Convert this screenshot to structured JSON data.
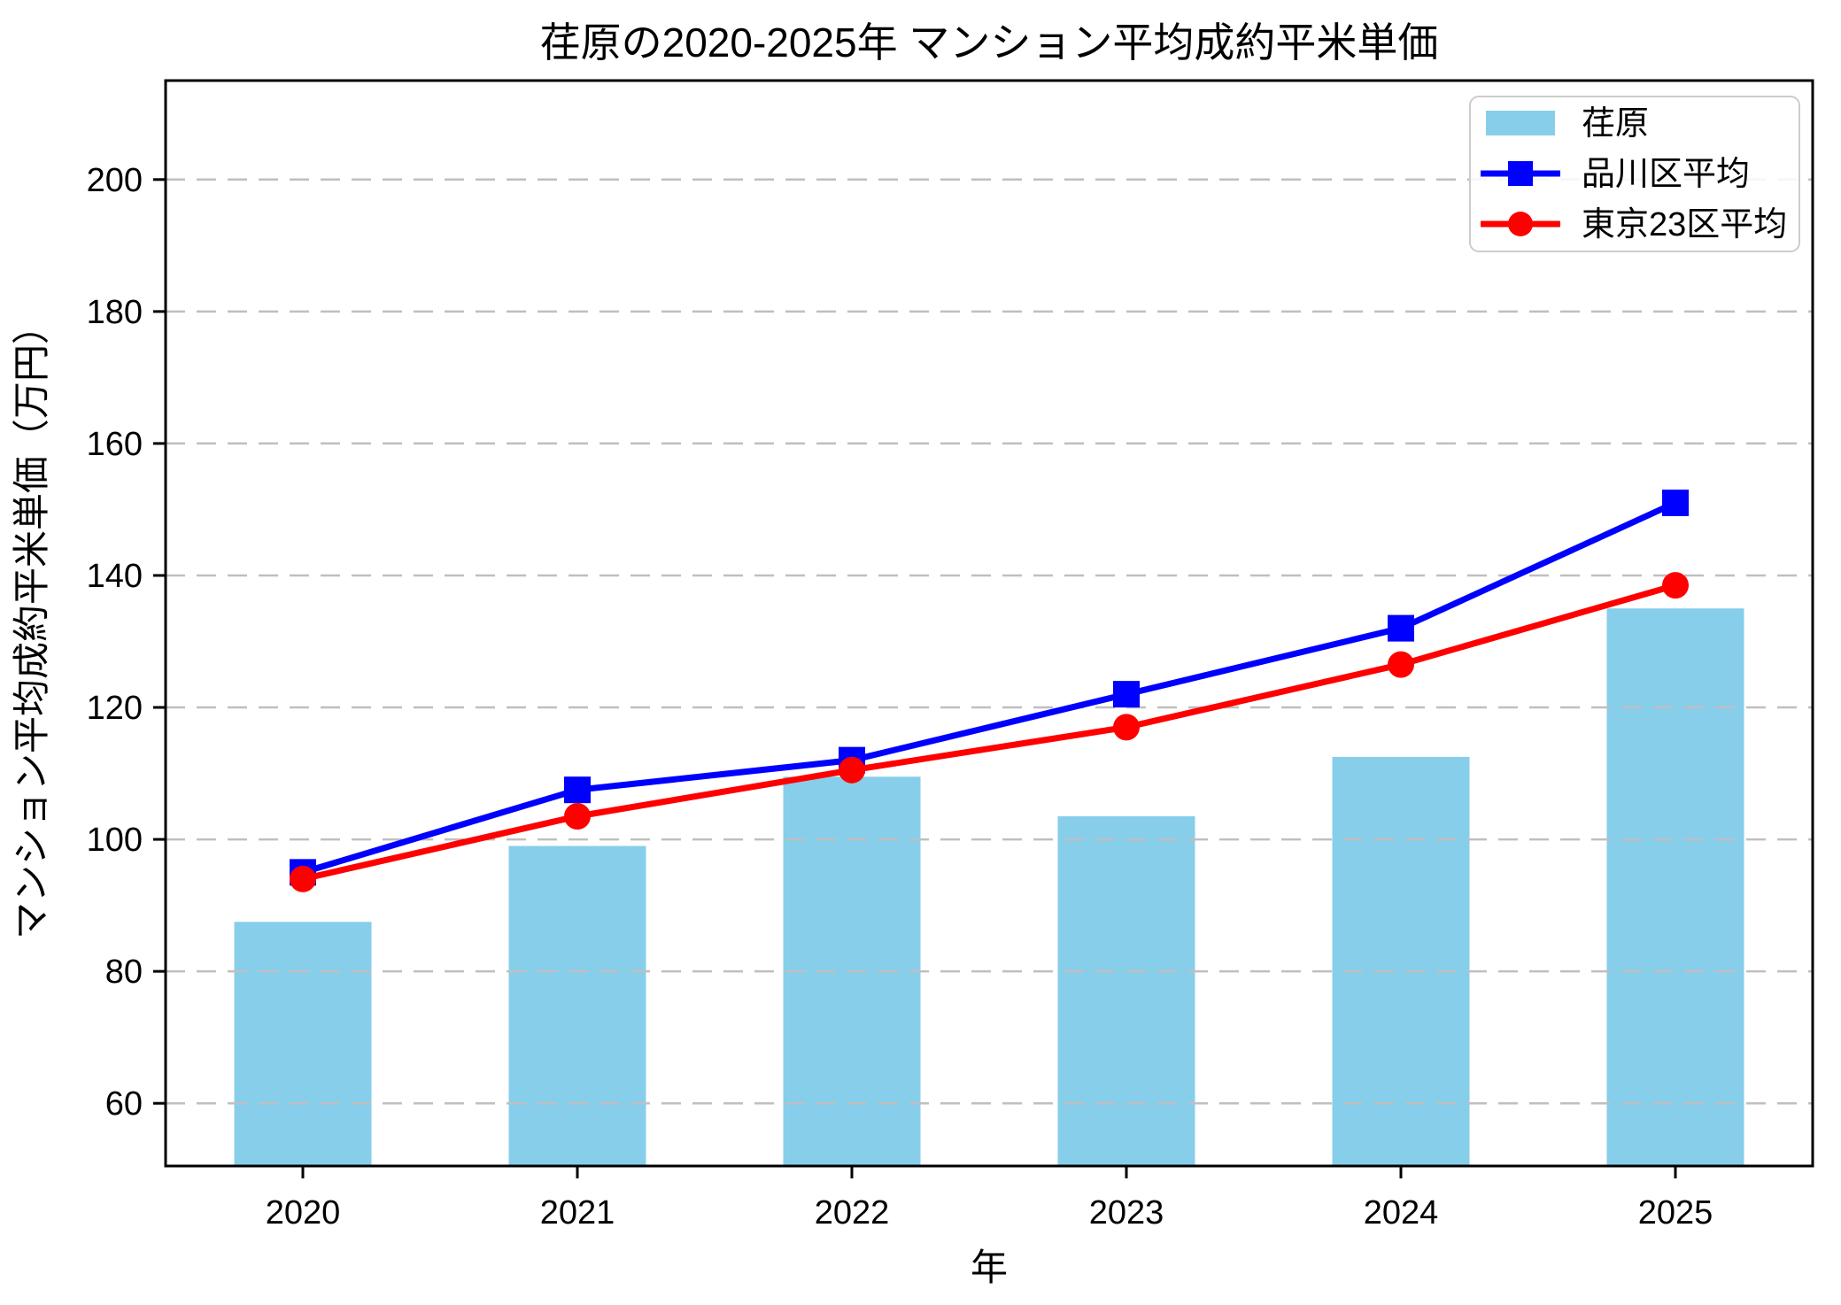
{
  "chart_data": {
    "type": "bar",
    "title": "荏原の2020-2025年 マンション平均成約平米単価",
    "xlabel": "年",
    "ylabel": "マンション平均成約平米単価（万円）",
    "categories": [
      "2020",
      "2021",
      "2022",
      "2023",
      "2024",
      "2025"
    ],
    "bar_series": {
      "name": "荏原",
      "color": "#87CEEB",
      "values": [
        87.5,
        99,
        109.5,
        103.5,
        112.5,
        135
      ]
    },
    "line_series": [
      {
        "name": "品川区平均",
        "color": "#0000FF",
        "marker": "square",
        "values": [
          95,
          107.5,
          112,
          122,
          132,
          151
        ]
      },
      {
        "name": "東京23区平均",
        "color": "#FF0000",
        "marker": "circle",
        "values": [
          94,
          103.5,
          110.5,
          117,
          126.5,
          138.5
        ]
      }
    ],
    "yticks": [
      60,
      80,
      100,
      120,
      140,
      160,
      180,
      200
    ],
    "ylim": [
      50.5,
      215
    ],
    "grid": "horizontal-dashed",
    "grid_color": "#BFBFBF",
    "axis_color": "#000000",
    "legend_position": "upper-right",
    "legend_labels": [
      "荏原",
      "品川区平均",
      "東京23区平均"
    ]
  }
}
